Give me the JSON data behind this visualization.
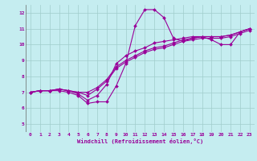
{
  "xlabel": "Windchill (Refroidissement éolien,°C)",
  "xlim_min": -0.5,
  "xlim_max": 23.5,
  "ylim_min": 4.5,
  "ylim_max": 12.5,
  "xticks": [
    0,
    1,
    2,
    3,
    4,
    5,
    6,
    7,
    8,
    9,
    10,
    11,
    12,
    13,
    14,
    15,
    16,
    17,
    18,
    19,
    20,
    21,
    22,
    23
  ],
  "yticks": [
    5,
    6,
    7,
    8,
    9,
    10,
    11,
    12
  ],
  "background_color": "#c5edf0",
  "grid_color": "#a0cccc",
  "line_color": "#990099",
  "tick_color": "#990099",
  "xlabel_color": "#990099",
  "lines": [
    [
      7.0,
      7.1,
      7.1,
      7.1,
      7.0,
      6.8,
      6.3,
      6.4,
      6.4,
      7.4,
      8.8,
      11.2,
      12.2,
      12.2,
      11.7,
      10.4,
      10.2,
      10.4,
      10.5,
      10.3,
      10.0,
      10.0,
      10.8,
      11.0
    ],
    [
      7.0,
      7.1,
      7.1,
      7.2,
      7.1,
      6.9,
      6.5,
      6.8,
      7.5,
      8.8,
      9.3,
      9.6,
      9.8,
      10.1,
      10.2,
      10.3,
      10.4,
      10.5,
      10.5,
      10.5,
      10.5,
      10.6,
      10.8,
      11.0
    ],
    [
      7.0,
      7.1,
      7.1,
      7.2,
      7.1,
      7.0,
      6.8,
      7.2,
      7.7,
      8.5,
      8.9,
      9.2,
      9.5,
      9.7,
      9.8,
      10.0,
      10.2,
      10.3,
      10.4,
      10.4,
      10.4,
      10.5,
      10.7,
      10.9
    ],
    [
      7.0,
      7.1,
      7.1,
      7.2,
      7.1,
      7.0,
      7.0,
      7.3,
      7.8,
      8.6,
      9.0,
      9.3,
      9.6,
      9.8,
      9.9,
      10.1,
      10.3,
      10.4,
      10.5,
      10.5,
      10.5,
      10.6,
      10.8,
      11.0
    ]
  ],
  "linewidth": 0.8,
  "markersize": 2.0,
  "tick_fontsize": 4.5,
  "xlabel_fontsize": 5.0
}
